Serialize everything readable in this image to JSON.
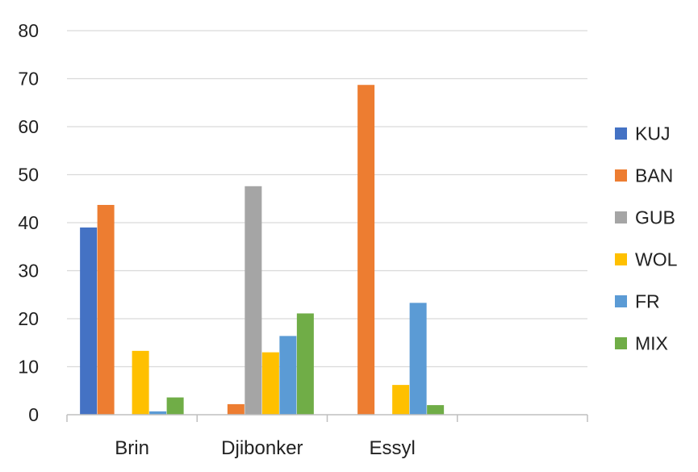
{
  "chart_data": {
    "type": "bar",
    "categories": [
      "Brin",
      "Djibonker",
      "Essyl"
    ],
    "series": [
      {
        "name": "KUJ",
        "color": "#4472c4",
        "values": [
          39,
          0,
          0
        ]
      },
      {
        "name": "BAN",
        "color": "#ed7d31",
        "values": [
          43.7,
          2.2,
          68.7
        ]
      },
      {
        "name": "GUB",
        "color": "#a5a5a5",
        "values": [
          0,
          47.6,
          0
        ]
      },
      {
        "name": "WOL",
        "color": "#ffc000",
        "values": [
          13.3,
          13,
          6.2
        ]
      },
      {
        "name": "FR",
        "color": "#5b9bd5",
        "values": [
          0.7,
          16.4,
          23.3
        ]
      },
      {
        "name": "MIX",
        "color": "#70ad47",
        "values": [
          3.6,
          21.1,
          2
        ]
      }
    ],
    "ylim": [
      0,
      80
    ],
    "yticks": [
      0,
      10,
      20,
      30,
      40,
      50,
      60,
      70,
      80
    ],
    "grid": true,
    "legend": "right",
    "title": "",
    "xlabel": "",
    "ylabel": ""
  }
}
